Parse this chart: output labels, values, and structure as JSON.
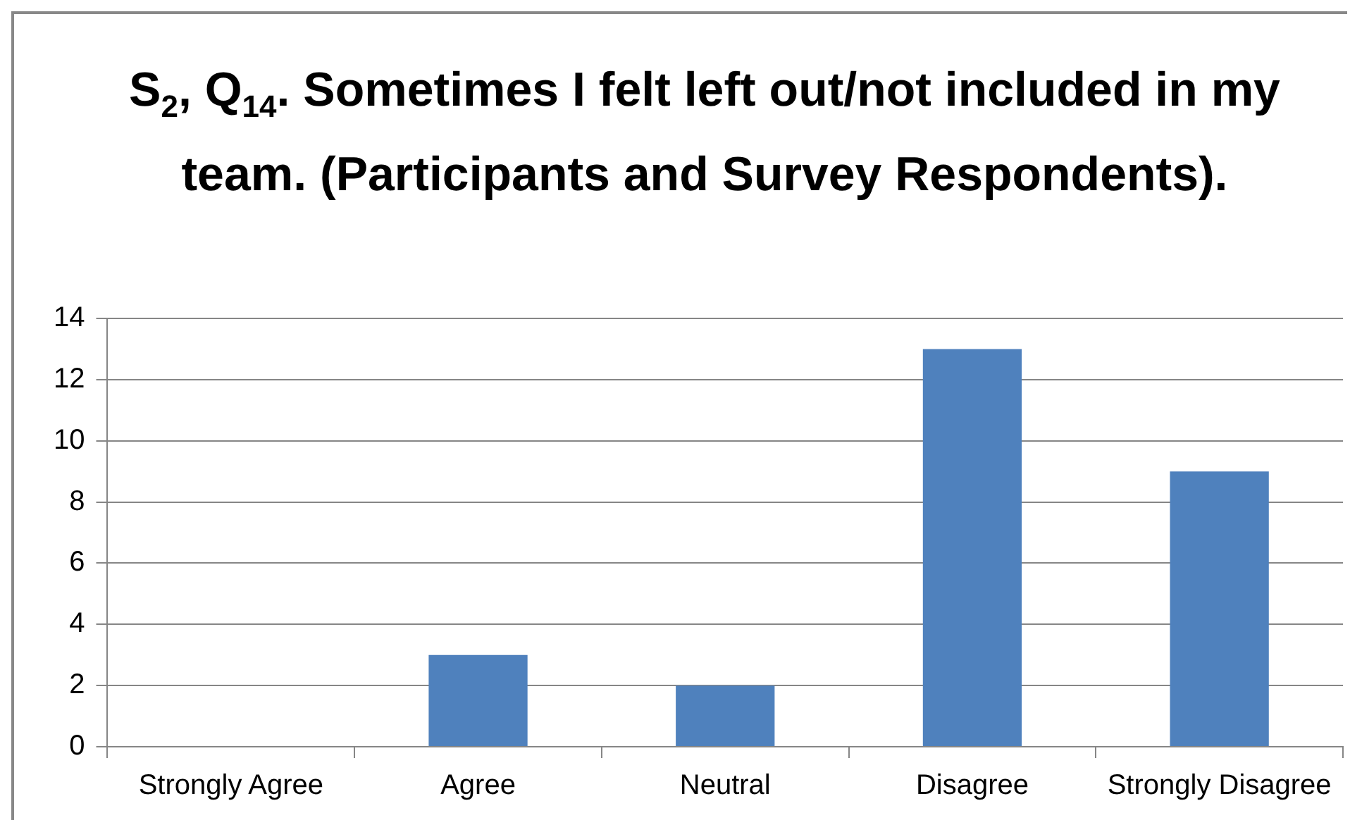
{
  "chart_data": {
    "type": "bar",
    "title": "S$_{2}$, Q$_{14}$. Sometimes I felt left out/not included in my team. (Participants and Survey Respondents).",
    "categories": [
      "Strongly Agree",
      "Agree",
      "Neutral",
      "Disagree",
      "Strongly Disagree"
    ],
    "values": [
      0,
      3,
      2,
      13,
      9
    ],
    "color": "#4f81bd",
    "ylim": [
      0,
      14
    ],
    "yticks": [
      0,
      2,
      4,
      6,
      8,
      10,
      12,
      14
    ],
    "grid": "y"
  }
}
